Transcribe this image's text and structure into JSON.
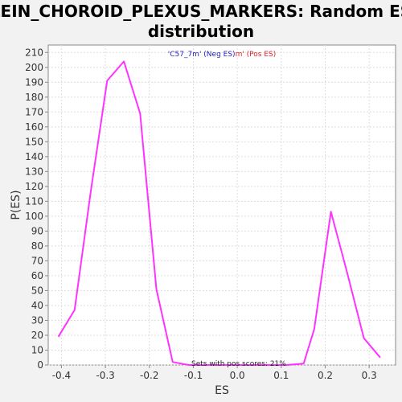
{
  "chart_data": {
    "type": "line",
    "title_line1": "LEIN_CHOROID_PLEXUS_MARKERS: Random ES",
    "title_line2": "distribution",
    "xlabel": "ES",
    "ylabel": "P(ES)",
    "xlim": [
      -0.43,
      0.36
    ],
    "ylim": [
      0,
      215
    ],
    "x_ticks": [
      -0.4,
      -0.3,
      -0.2,
      -0.1,
      0.0,
      0.1,
      0.2,
      0.3
    ],
    "x_tick_labels": [
      "-0.4",
      "-0.3",
      "-0.2",
      "-0.1",
      "0.0",
      "0.1",
      "0.2",
      "0.3"
    ],
    "y_ticks": [
      0,
      10,
      20,
      30,
      40,
      50,
      60,
      70,
      80,
      90,
      100,
      110,
      120,
      130,
      140,
      150,
      160,
      170,
      180,
      190,
      200,
      210
    ],
    "grid": true,
    "series": [
      {
        "color": "#ff33ff",
        "x": [
          -0.407,
          -0.37,
          -0.333,
          -0.296,
          -0.258,
          -0.221,
          -0.184,
          -0.147,
          -0.11,
          -0.072,
          -0.035,
          0.002,
          0.039,
          0.076,
          0.114,
          0.151,
          0.175,
          0.213,
          0.25,
          0.288,
          0.325
        ],
        "y": [
          19,
          37,
          117,
          191,
          204,
          169,
          51,
          2,
          0,
          0,
          0,
          0,
          0,
          0,
          0,
          1,
          24,
          103,
          62,
          18,
          5
        ]
      }
    ],
    "legend": {
      "neg_label": "'C57_7m' (Neg ES)",
      "pos_label": "m' (Pos ES)",
      "neg_color": "#2222bb",
      "pos_color": "#dd2222"
    },
    "annotation": "Sets with pos scores: 21%"
  }
}
